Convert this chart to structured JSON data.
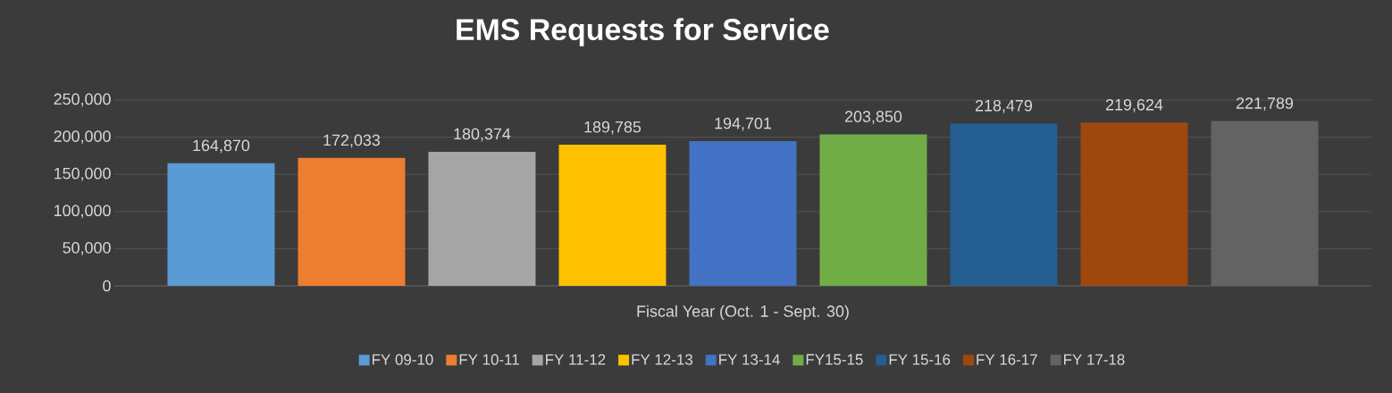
{
  "chart_data": {
    "type": "bar",
    "title": "EMS Requests for Service",
    "xlabel": "Fiscal Year (Oct. 1 - Sept. 30)",
    "categories": [
      null
    ],
    "series": [
      {
        "name": "FY 09-10",
        "color": "#5b9bd5",
        "values": [
          164870
        ],
        "value_labels": [
          "164,870"
        ]
      },
      {
        "name": "FY 10-11",
        "color": "#ed7d31",
        "values": [
          172033
        ],
        "value_labels": [
          "172,033"
        ]
      },
      {
        "name": "FY 11-12",
        "color": "#a5a5a5",
        "values": [
          180374
        ],
        "value_labels": [
          "180,374"
        ]
      },
      {
        "name": "FY 12-13",
        "color": "#ffc000",
        "values": [
          189785
        ],
        "value_labels": [
          "189,785"
        ]
      },
      {
        "name": "FY 13-14",
        "color": "#4472c4",
        "values": [
          194701
        ],
        "value_labels": [
          "194,701"
        ]
      },
      {
        "name": "FY15-15",
        "color": "#70ad47",
        "values": [
          203850
        ],
        "value_labels": [
          "203,850"
        ]
      },
      {
        "name": "FY 15-16",
        "color": "#255e91",
        "values": [
          218479
        ],
        "value_labels": [
          "218,479"
        ]
      },
      {
        "name": "FY 16-17",
        "color": "#9e480e",
        "values": [
          219624
        ],
        "value_labels": [
          "219,624"
        ]
      },
      {
        "name": "FY 17-18",
        "color": "#636363",
        "values": [
          221789
        ],
        "value_labels": [
          "221,789"
        ]
      }
    ],
    "ylim": [
      0,
      250000
    ],
    "yticks": [
      0,
      {
        "value": 50000,
        "label": "50,000"
      },
      {
        "value": 100000,
        "label": "100,000"
      },
      {
        "value": 150000,
        "label": "150,000"
      },
      {
        "value": 200000,
        "label": "200,000"
      },
      {
        "value": 250000,
        "label": "250,000"
      }
    ],
    "grid": "y",
    "legend": "bottom"
  }
}
